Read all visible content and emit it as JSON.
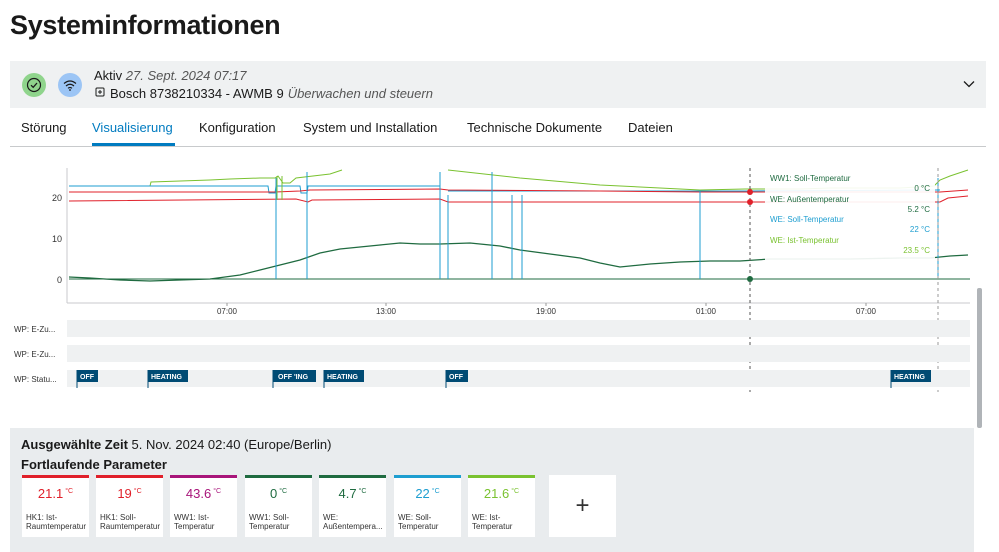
{
  "page": {
    "title": "Systeminformationen"
  },
  "device": {
    "status": "Aktiv",
    "timestamp": "27. Sept. 2024 07:17",
    "name": "Bosch 8738210334 - AWMB 9",
    "subtitle": "Überwachen und steuern"
  },
  "tabs": [
    {
      "label": "Störung"
    },
    {
      "label": "Visualisierung",
      "active": true
    },
    {
      "label": "Konfiguration"
    },
    {
      "label": "System und Installation"
    },
    {
      "label": "Technische Dokumente"
    },
    {
      "label": "Dateien"
    }
  ],
  "chart_data": {
    "type": "line",
    "yticks": [
      0,
      10,
      20
    ],
    "xticks": [
      "07:00",
      "13:00",
      "19:00",
      "01:00",
      "07:00"
    ],
    "colors": {
      "red": "#e0202a",
      "blue": "#1e9ed0",
      "darkgreen": "#1f6b40",
      "lime": "#7ac230"
    },
    "series": [
      {
        "name": "HK1: Ist-Raumtemperatur",
        "color": "#e0202a",
        "approx_level": 21.1
      },
      {
        "name": "HK1: Soll-Raumtemperatur",
        "color": "#e0202a",
        "approx_level": 19
      },
      {
        "name": "WW1: Soll-Temperatur",
        "color": "#1f6b40",
        "approx_level": 0
      },
      {
        "name": "WE: Außentemperatur",
        "color": "#1f6b40",
        "approx_level": 4.7
      },
      {
        "name": "WE: Soll-Temperatur",
        "color": "#1e9ed0",
        "approx_level": 22
      },
      {
        "name": "WE: Ist-Temperatur",
        "color": "#7ac230",
        "approx_level": 21.6
      }
    ],
    "tooltip": [
      {
        "label": "WW1: Soll-Temperatur",
        "value": "0 °C",
        "color": "#1f6b40"
      },
      {
        "label": "WE: Außentemperatur",
        "value": "5.2 °C",
        "color": "#1f6b40"
      },
      {
        "label": "WE: Soll-Temperatur",
        "value": "22 °C",
        "color": "#1e9ed0"
      },
      {
        "label": "WE: Ist-Temperatur",
        "value": "23.5 °C",
        "color": "#7ac230"
      }
    ],
    "status_rows": [
      {
        "label": "WP: E-Zu..."
      },
      {
        "label": "WP: E-Zu..."
      },
      {
        "label": "WP: Statu..."
      }
    ],
    "status_flags": [
      {
        "label": "OFF"
      },
      {
        "label": "HEATING"
      },
      {
        "label": "OFF 'ING"
      },
      {
        "label": "HEATING"
      },
      {
        "label": "OFF"
      },
      {
        "label": "HEATING"
      }
    ]
  },
  "selected": {
    "label": "Ausgewählte Zeit",
    "value": "5. Nov. 2024 02:40 (Europe/Berlin)",
    "section_title": "Fortlaufende Parameter",
    "unit": "°C",
    "params": [
      {
        "value": "21.1",
        "name1": "HK1: Ist-",
        "name2": "Raumtemperatur",
        "color": "#e0202a"
      },
      {
        "value": "19",
        "name1": "HK1: Soll-",
        "name2": "Raumtemperatur",
        "color": "#e0202a"
      },
      {
        "value": "43.6",
        "name1": "WW1: Ist-",
        "name2": "Temperatur",
        "color": "#a8157a"
      },
      {
        "value": "0",
        "name1": "WW1: Soll-",
        "name2": "Temperatur",
        "color": "#1f6b40"
      },
      {
        "value": "4.7",
        "name1": "WE:",
        "name2": "Außentempera...",
        "color": "#1f6b40"
      },
      {
        "value": "22",
        "name1": "WE: Soll-",
        "name2": "Temperatur",
        "color": "#1e9ed0"
      },
      {
        "value": "21.6",
        "name1": "WE: Ist-",
        "name2": "Temperatur",
        "color": "#7ac230"
      }
    ],
    "add_label": "+"
  }
}
